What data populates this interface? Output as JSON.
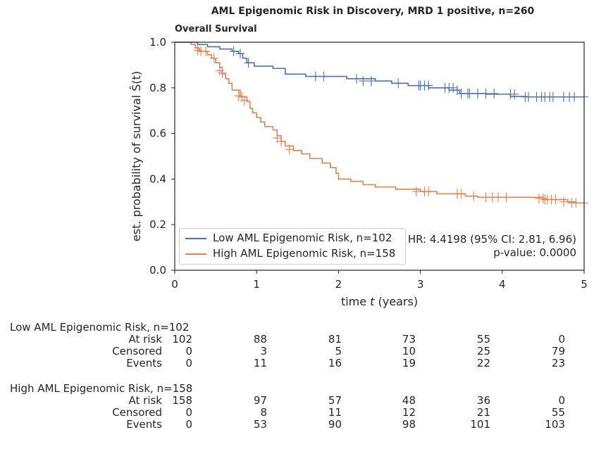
{
  "title": "AML Epigenomic Risk in Discovery, MRD 1 positive, n=260",
  "subtitle": "Overall Survival",
  "chart_data": {
    "type": "line",
    "xlabel_prefix": "time ",
    "xlabel_var": "t",
    "xlabel_suffix": " (years)",
    "ylabel": "est. probability of survival Ŝ(t)",
    "xlim": [
      0,
      5
    ],
    "ylim": [
      0,
      1.0
    ],
    "xticks": [
      "0",
      "1",
      "2",
      "3",
      "4",
      "5"
    ],
    "yticks": [
      "0.0",
      "0.2",
      "0.4",
      "0.6",
      "0.8",
      "1.0"
    ],
    "grid": false,
    "legend_position": "lower-left",
    "series": [
      {
        "name": "Low AML Epigenomic Risk, n=102",
        "color": "#4c72b0",
        "steps": [
          [
            0,
            1.0
          ],
          [
            0.28,
            0.99
          ],
          [
            0.4,
            0.98
          ],
          [
            0.55,
            0.97
          ],
          [
            0.7,
            0.96
          ],
          [
            0.78,
            0.95
          ],
          [
            0.83,
            0.93
          ],
          [
            0.88,
            0.91
          ],
          [
            0.97,
            0.895
          ],
          [
            1.2,
            0.885
          ],
          [
            1.35,
            0.86
          ],
          [
            1.6,
            0.85
          ],
          [
            2.1,
            0.84
          ],
          [
            2.45,
            0.83
          ],
          [
            2.65,
            0.82
          ],
          [
            2.85,
            0.81
          ],
          [
            3.1,
            0.8
          ],
          [
            3.35,
            0.79
          ],
          [
            3.48,
            0.775
          ],
          [
            3.8,
            0.772
          ],
          [
            4.1,
            0.762
          ],
          [
            4.3,
            0.76
          ]
        ],
        "end_x": 5,
        "censored": [
          [
            0.72,
            0.96
          ],
          [
            0.8,
            0.95
          ],
          [
            0.9,
            0.91
          ],
          [
            1.72,
            0.85
          ],
          [
            1.82,
            0.85
          ],
          [
            2.22,
            0.84
          ],
          [
            2.3,
            0.83
          ],
          [
            2.4,
            0.83
          ],
          [
            2.73,
            0.82
          ],
          [
            2.98,
            0.81
          ],
          [
            3.0,
            0.81
          ],
          [
            3.05,
            0.81
          ],
          [
            3.1,
            0.81
          ],
          [
            3.3,
            0.8
          ],
          [
            3.35,
            0.8
          ],
          [
            3.4,
            0.8
          ],
          [
            3.45,
            0.79
          ],
          [
            3.5,
            0.775
          ],
          [
            3.58,
            0.775
          ],
          [
            3.6,
            0.775
          ],
          [
            3.7,
            0.775
          ],
          [
            3.8,
            0.775
          ],
          [
            3.9,
            0.775
          ],
          [
            4.1,
            0.772
          ],
          [
            4.15,
            0.772
          ],
          [
            4.28,
            0.76
          ],
          [
            4.32,
            0.76
          ],
          [
            4.42,
            0.76
          ],
          [
            4.48,
            0.76
          ],
          [
            4.52,
            0.76
          ],
          [
            4.58,
            0.76
          ],
          [
            4.62,
            0.76
          ],
          [
            4.75,
            0.76
          ],
          [
            4.82,
            0.76
          ],
          [
            4.88,
            0.76
          ],
          [
            5.0,
            0.76
          ]
        ]
      },
      {
        "name": "High AML Epigenomic Risk, n=158",
        "color": "#dd8452",
        "steps": [
          [
            0,
            1.0
          ],
          [
            0.2,
            0.99
          ],
          [
            0.25,
            0.975
          ],
          [
            0.3,
            0.96
          ],
          [
            0.4,
            0.945
          ],
          [
            0.45,
            0.93
          ],
          [
            0.5,
            0.91
          ],
          [
            0.55,
            0.89
          ],
          [
            0.58,
            0.86
          ],
          [
            0.62,
            0.84
          ],
          [
            0.66,
            0.82
          ],
          [
            0.7,
            0.79
          ],
          [
            0.8,
            0.76
          ],
          [
            0.88,
            0.74
          ],
          [
            0.92,
            0.71
          ],
          [
            0.95,
            0.69
          ],
          [
            1.0,
            0.67
          ],
          [
            1.05,
            0.65
          ],
          [
            1.1,
            0.63
          ],
          [
            1.2,
            0.615
          ],
          [
            1.25,
            0.59
          ],
          [
            1.3,
            0.565
          ],
          [
            1.35,
            0.545
          ],
          [
            1.45,
            0.525
          ],
          [
            1.55,
            0.51
          ],
          [
            1.65,
            0.49
          ],
          [
            1.8,
            0.47
          ],
          [
            1.9,
            0.45
          ],
          [
            1.97,
            0.425
          ],
          [
            2.0,
            0.4
          ],
          [
            2.15,
            0.39
          ],
          [
            2.3,
            0.375
          ],
          [
            2.45,
            0.365
          ],
          [
            2.7,
            0.355
          ],
          [
            3.0,
            0.345
          ],
          [
            3.2,
            0.335
          ],
          [
            3.55,
            0.325
          ],
          [
            3.7,
            0.32
          ],
          [
            4.5,
            0.31
          ],
          [
            4.8,
            0.3
          ],
          [
            4.9,
            0.295
          ]
        ],
        "end_x": 5,
        "censored": [
          [
            0.28,
            0.965
          ],
          [
            0.32,
            0.96
          ],
          [
            0.38,
            0.96
          ],
          [
            0.48,
            0.93
          ],
          [
            0.55,
            0.875
          ],
          [
            0.58,
            0.865
          ],
          [
            0.78,
            0.765
          ],
          [
            0.82,
            0.76
          ],
          [
            0.85,
            0.745
          ],
          [
            1.25,
            0.58
          ],
          [
            1.3,
            0.565
          ],
          [
            1.4,
            0.53
          ],
          [
            2.95,
            0.345
          ],
          [
            3.05,
            0.345
          ],
          [
            3.1,
            0.345
          ],
          [
            3.45,
            0.335
          ],
          [
            3.5,
            0.335
          ],
          [
            3.65,
            0.325
          ],
          [
            3.8,
            0.32
          ],
          [
            3.88,
            0.32
          ],
          [
            3.95,
            0.32
          ],
          [
            4.05,
            0.32
          ],
          [
            4.45,
            0.315
          ],
          [
            4.5,
            0.315
          ],
          [
            4.52,
            0.31
          ],
          [
            4.55,
            0.31
          ],
          [
            4.6,
            0.31
          ],
          [
            4.65,
            0.31
          ],
          [
            4.75,
            0.3
          ],
          [
            4.85,
            0.295
          ],
          [
            4.9,
            0.295
          ],
          [
            5.0,
            0.295
          ]
        ]
      }
    ]
  },
  "annotation": {
    "hr": "HR: 4.4198 (95% CI: 2.81, 6.96)",
    "pvalue": "p-value: 0.0000"
  },
  "risk_table": {
    "groups": [
      {
        "title": "Low AML Epigenomic Risk, n=102",
        "rows": [
          {
            "label": "At risk",
            "values": [
              "102",
              "88",
              "81",
              "73",
              "55",
              "0"
            ]
          },
          {
            "label": "Censored",
            "values": [
              "0",
              "3",
              "5",
              "10",
              "25",
              "79"
            ]
          },
          {
            "label": "Events",
            "values": [
              "0",
              "11",
              "16",
              "19",
              "22",
              "23"
            ]
          }
        ]
      },
      {
        "title": "High AML Epigenomic Risk, n=158",
        "rows": [
          {
            "label": "At risk",
            "values": [
              "158",
              "97",
              "57",
              "48",
              "36",
              "0"
            ]
          },
          {
            "label": "Censored",
            "values": [
              "0",
              "8",
              "11",
              "12",
              "21",
              "55"
            ]
          },
          {
            "label": "Events",
            "values": [
              "0",
              "53",
              "90",
              "98",
              "101",
              "103"
            ]
          }
        ]
      }
    ]
  }
}
